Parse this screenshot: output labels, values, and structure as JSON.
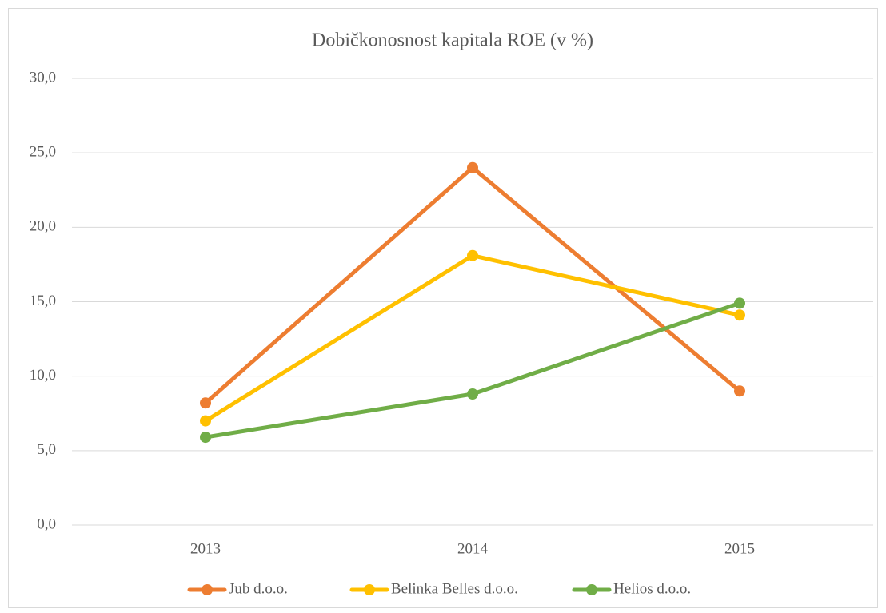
{
  "chart_data": {
    "type": "line",
    "title": "Dobičkonosnost kapitala ROE (v %)",
    "categories": [
      "2013",
      "2014",
      "2015"
    ],
    "series": [
      {
        "name": "Jub d.o.o.",
        "color": "#ed7d31",
        "values": [
          8.2,
          24.0,
          9.0
        ]
      },
      {
        "name": "Belinka Belles d.o.o.",
        "color": "#ffc000",
        "values": [
          7.0,
          18.1,
          14.1
        ]
      },
      {
        "name": "Helios d.o.o.",
        "color": "#70ad47",
        "values": [
          5.9,
          8.8,
          14.9
        ]
      }
    ],
    "ylim": [
      0,
      30
    ],
    "yticks": [
      {
        "value": 0,
        "label": "0,0"
      },
      {
        "value": 5,
        "label": "5,0"
      },
      {
        "value": 10,
        "label": "10,0"
      },
      {
        "value": 15,
        "label": "15,0"
      },
      {
        "value": 20,
        "label": "20,0"
      },
      {
        "value": 25,
        "label": "25,0"
      },
      {
        "value": 30,
        "label": "30,0"
      }
    ],
    "grid": true,
    "legend": "bottom"
  }
}
